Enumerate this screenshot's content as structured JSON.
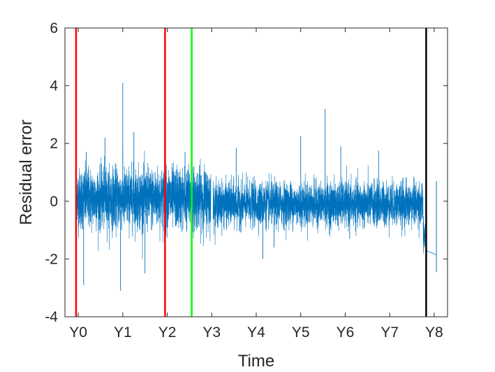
{
  "chart_data": {
    "type": "line",
    "xlabel": "Time",
    "ylabel": "Residual error",
    "xlim": [
      -0.3,
      8.3
    ],
    "ylim": [
      -4,
      6
    ],
    "x_ticks": [
      {
        "value": 0,
        "label": "Y0"
      },
      {
        "value": 1,
        "label": "Y1"
      },
      {
        "value": 2,
        "label": "Y2"
      },
      {
        "value": 3,
        "label": "Y3"
      },
      {
        "value": 4,
        "label": "Y4"
      },
      {
        "value": 5,
        "label": "Y5"
      },
      {
        "value": 6,
        "label": "Y6"
      },
      {
        "value": 7,
        "label": "Y7"
      },
      {
        "value": 8,
        "label": "Y8"
      }
    ],
    "y_ticks": [
      {
        "value": -4,
        "label": "-4"
      },
      {
        "value": -2,
        "label": "-2"
      },
      {
        "value": 0,
        "label": "0"
      },
      {
        "value": 2,
        "label": "2"
      },
      {
        "value": 4,
        "label": "4"
      },
      {
        "value": 6,
        "label": "6"
      }
    ],
    "grid": false,
    "series": [
      {
        "color": "#0072BD",
        "segments": [
          {
            "x_start": -0.05,
            "x_end": 2.98,
            "spread": 0.7,
            "mean": 0.1
          },
          {
            "x_start": 3.03,
            "x_end": 7.75,
            "spread": 0.5,
            "mean": -0.1
          },
          {
            "x_start": 7.75,
            "x_end": 7.8,
            "spread": 0.4,
            "mean": -1.2
          }
        ],
        "peaks": [
          {
            "x": -0.05,
            "y": 1.65
          },
          {
            "x": 0.12,
            "y": -2.9
          },
          {
            "x": 0.18,
            "y": 1.7
          },
          {
            "x": 0.6,
            "y": 2.2
          },
          {
            "x": 0.95,
            "y": -3.1
          },
          {
            "x": 1.0,
            "y": 4.1
          },
          {
            "x": 1.25,
            "y": 2.4
          },
          {
            "x": 1.5,
            "y": -2.5
          },
          {
            "x": 2.4,
            "y": 1.7
          },
          {
            "x": 2.55,
            "y": 1.4
          },
          {
            "x": 3.55,
            "y": 1.85
          },
          {
            "x": 4.15,
            "y": -2.0
          },
          {
            "x": 4.4,
            "y": -1.6
          },
          {
            "x": 5.0,
            "y": 2.25
          },
          {
            "x": 5.55,
            "y": 3.2
          },
          {
            "x": 5.9,
            "y": 1.9
          },
          {
            "x": 6.1,
            "y": -1.3
          },
          {
            "x": 6.75,
            "y": 1.75
          }
        ],
        "tail": [
          {
            "x": 7.8,
            "y": -1.7
          },
          {
            "x": 8.05,
            "y": -1.85
          }
        ],
        "spikes": [
          {
            "x": 8.05,
            "y_low": -2.45,
            "y_high": 0.7
          }
        ]
      }
    ],
    "vertical_lines": [
      {
        "x": -0.05,
        "color": "#FF0000"
      },
      {
        "x": 1.95,
        "color": "#FF0000"
      },
      {
        "x": 2.55,
        "color": "#00FF00"
      },
      {
        "x": 7.82,
        "color": "#000000"
      }
    ]
  }
}
